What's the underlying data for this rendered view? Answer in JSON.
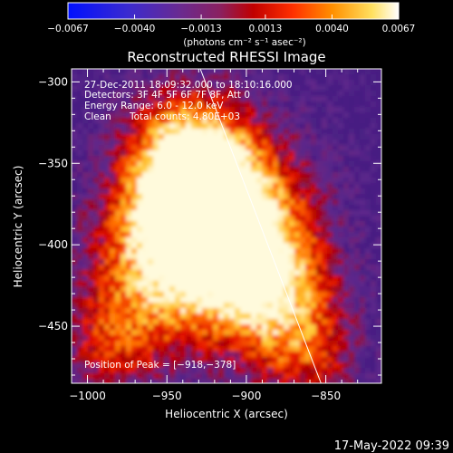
{
  "chart_data": {
    "type": "heatmap",
    "title": "Reconstructed RHESSI Image",
    "xlabel": "Heliocentric X (arcsec)",
    "ylabel": "Heliocentric Y (arcsec)",
    "xlim": [
      -1010,
      -815
    ],
    "ylim": [
      -485,
      -292
    ],
    "x_ticks": [
      -1000,
      -950,
      -900,
      -850
    ],
    "y_ticks": [
      -300,
      -350,
      -400,
      -450
    ],
    "x_tick_labels": [
      "−1000",
      "−950",
      "−900",
      "−850"
    ],
    "y_tick_labels": [
      "−300",
      "−350",
      "−400",
      "−450"
    ],
    "colorbar": {
      "min": -0.0067,
      "max": 0.0067,
      "ticks": [
        -0.0067,
        -0.004,
        -0.0013,
        0.0013,
        0.004,
        0.0067
      ],
      "tick_labels": [
        "−0.0067",
        "−0.0040",
        "−0.0013",
        "0.0013",
        "0.0040",
        "0.0067"
      ],
      "units": "(photons cm⁻² s⁻¹ asec⁻²)"
    },
    "annotations": {
      "time_range": "27-Dec-2011 18:09:32.000 to 18:10:16.000",
      "detectors": "Detectors: 3F 4F 5F 6F 7F 8F, Att 0",
      "energy": "Energy Range: 6.0 - 12.0 keV",
      "method": "Clean",
      "counts": "Total counts: 4.80E+03",
      "peak": "Position of Peak = [−918,−378]"
    },
    "peak_position": [
      -918,
      -378
    ],
    "limb_line": [
      [
        -929,
        -292
      ],
      [
        -853,
        -485
      ]
    ],
    "footer_timestamp": "17-May-2022 09:39"
  },
  "colors": {
    "background": "#000000",
    "foreground": "#ffffff",
    "colormap": [
      "#0000ff",
      "#5a2aa0",
      "#7a2a7a",
      "#b00000",
      "#ff2000",
      "#ff8000",
      "#ffd040",
      "#ffffff"
    ]
  }
}
